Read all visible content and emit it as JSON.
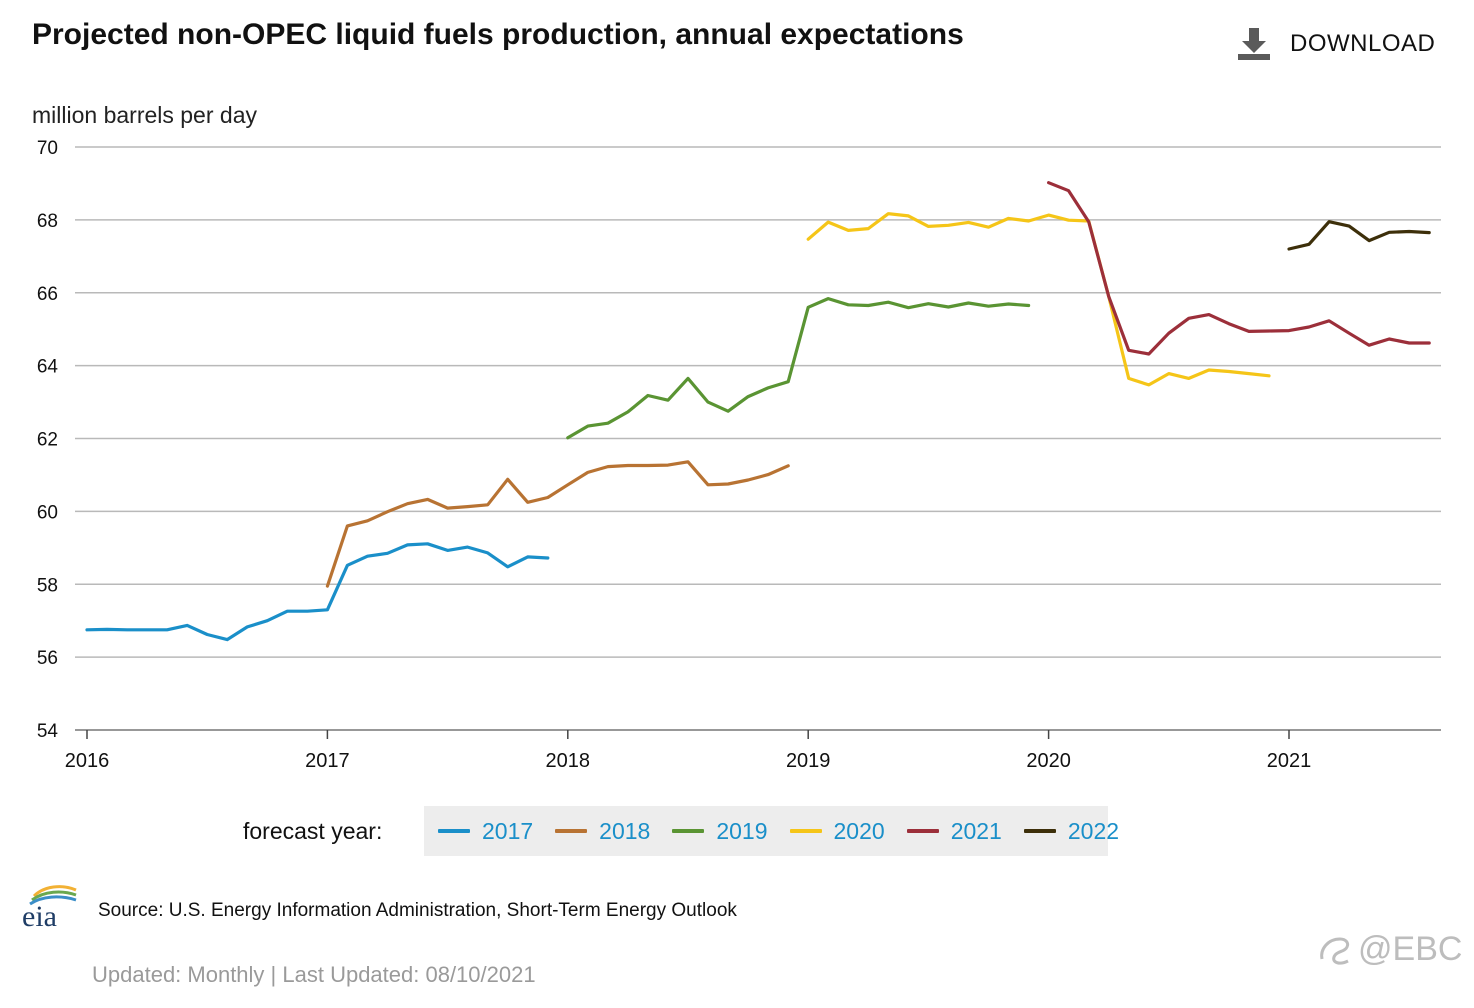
{
  "title": "Projected non-OPEC liquid fuels production, annual expectations",
  "download_label": "DOWNLOAD",
  "y_unit_label": "million barrels per day",
  "legend": {
    "label": "forecast year:",
    "items": [
      {
        "name": "2017",
        "color": "#1a8fc9"
      },
      {
        "name": "2018",
        "color": "#b87333"
      },
      {
        "name": "2019",
        "color": "#5a9433"
      },
      {
        "name": "2020",
        "color": "#f5c518"
      },
      {
        "name": "2021",
        "color": "#9c2f3a"
      },
      {
        "name": "2022",
        "color": "#3d2f0a"
      }
    ]
  },
  "source": "Source: U.S. Energy Information Administration, Short-Term Energy Outlook",
  "updated": "Updated: Monthly | Last Updated: 08/10/2021",
  "watermark": "@EBC",
  "logo_text": "eia",
  "chart_data": {
    "type": "line",
    "title": "Projected non-OPEC liquid fuels production, annual expectations",
    "ylabel": "million barrels per day",
    "xlabel": "",
    "ylim": [
      54,
      70
    ],
    "yticks": [
      54,
      56,
      58,
      60,
      62,
      64,
      66,
      68,
      70
    ],
    "xlim": [
      2016,
      2021.63
    ],
    "xticks": [
      2016,
      2017,
      2018,
      2019,
      2020,
      2021
    ],
    "x_note": "x values are release months expressed as fractional years (month index / 12)",
    "series": [
      {
        "name": "2017",
        "color": "#1a8fc9",
        "x_start": 2016.0,
        "values": [
          56.75,
          56.76,
          56.75,
          56.75,
          56.75,
          56.87,
          56.62,
          56.48,
          56.83,
          57.0,
          57.26,
          57.26,
          57.3,
          58.52,
          58.77,
          58.85,
          59.08,
          59.11,
          58.93,
          59.02,
          58.86,
          58.48,
          58.75,
          58.72
        ]
      },
      {
        "name": "2018",
        "color": "#b87333",
        "x_start": 2017.0,
        "values": [
          57.95,
          59.6,
          59.74,
          59.99,
          60.21,
          60.33,
          60.09,
          60.13,
          60.18,
          60.88,
          60.25,
          60.38,
          60.73,
          61.07,
          61.23,
          61.26,
          61.26,
          61.27,
          61.36,
          60.73,
          60.75,
          60.86,
          61.01,
          61.25
        ]
      },
      {
        "name": "2019",
        "color": "#5a9433",
        "x_start": 2018.0,
        "values": [
          62.02,
          62.34,
          62.42,
          62.73,
          63.18,
          63.05,
          63.65,
          63.0,
          62.75,
          63.15,
          63.39,
          63.56,
          65.6,
          65.84,
          65.67,
          65.65,
          65.74,
          65.59,
          65.7,
          65.61,
          65.72,
          65.63,
          65.69,
          65.65
        ]
      },
      {
        "name": "2020",
        "color": "#f5c518",
        "x_start": 2019.0,
        "values": [
          67.47,
          67.94,
          67.71,
          67.76,
          68.17,
          68.11,
          67.82,
          67.85,
          67.93,
          67.8,
          68.04,
          67.97,
          68.13,
          67.99,
          67.97,
          65.9,
          63.65,
          63.47,
          63.78,
          63.65,
          63.88,
          63.84,
          63.78,
          63.72
        ]
      },
      {
        "name": "2021",
        "color": "#9c2f3a",
        "x_start": 2020.0,
        "values": [
          69.02,
          68.8,
          67.95,
          65.9,
          64.42,
          64.32,
          64.89,
          65.3,
          65.4,
          65.15,
          64.94,
          64.95,
          64.96,
          65.06,
          65.23,
          64.89,
          64.56,
          64.73,
          64.62,
          64.62
        ]
      },
      {
        "name": "2022",
        "color": "#3d2f0a",
        "x_start": 2021.0,
        "values": [
          67.2,
          67.33,
          67.95,
          67.83,
          67.43,
          67.66,
          67.68,
          67.65
        ]
      }
    ]
  }
}
